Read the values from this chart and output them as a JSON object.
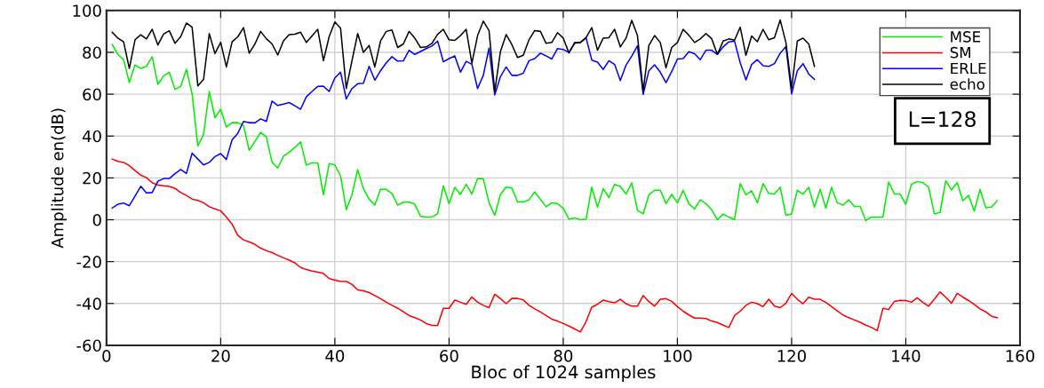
{
  "chart_data": {
    "type": "line",
    "xlabel": "Bloc of 1024 samples",
    "ylabel": "Amplitude en(dB)",
    "xlim": [
      0,
      160
    ],
    "xticks": [
      0,
      20,
      40,
      60,
      80,
      100,
      120,
      140,
      160
    ],
    "ylim": [
      -60,
      100
    ],
    "yticks": [
      -60,
      -40,
      -20,
      0,
      20,
      40,
      60,
      80,
      100
    ],
    "grid": true,
    "legend": "top right",
    "line_style": "solid",
    "marker": "none",
    "annotations": [
      "L=128"
    ],
    "series": [
      {
        "name": "MSE",
        "color": "#00ee00",
        "x": [
          1,
          2,
          3,
          4,
          5,
          6,
          7,
          8,
          9,
          10,
          11,
          12,
          13,
          14,
          15,
          16,
          17,
          18,
          19,
          20,
          21,
          22,
          23,
          24,
          25,
          26,
          27,
          28,
          29,
          30,
          31,
          32,
          33,
          34,
          35,
          36,
          37,
          38,
          39,
          40,
          41,
          42,
          43,
          44,
          45,
          46,
          47,
          48,
          49,
          50,
          51,
          52,
          53,
          54,
          55,
          56,
          57,
          58,
          59,
          60,
          61,
          62,
          63,
          64,
          65,
          66,
          67,
          68,
          69,
          70,
          71,
          72,
          73,
          74,
          75,
          76,
          77,
          78,
          79,
          80,
          81,
          82,
          83,
          84,
          85,
          86,
          87,
          88,
          89,
          90,
          91,
          92,
          93,
          94,
          95,
          96,
          97,
          98,
          99,
          100,
          101,
          102,
          103,
          104,
          105,
          106,
          107,
          108,
          109,
          110,
          111,
          112,
          113,
          114,
          115,
          116,
          117,
          118,
          119,
          120,
          121,
          122,
          123,
          124,
          125,
          126,
          127,
          128,
          129,
          130,
          131,
          132,
          133,
          134,
          135,
          136,
          137,
          138,
          139,
          140,
          141,
          142,
          143,
          144,
          145,
          146,
          147,
          148,
          149,
          150,
          151,
          152,
          153,
          154,
          155,
          156
        ],
        "values": [
          83.7,
          79,
          76.5,
          65.5,
          74,
          72.3,
          73.3,
          77.9,
          64.7,
          68.7,
          70.5,
          62.3,
          63.7,
          71.9,
          60.1,
          35.3,
          40.7,
          61.3,
          48.8,
          52.8,
          44.3,
          46.4,
          46.4,
          45,
          33.2,
          37.4,
          41.7,
          39.6,
          27.5,
          24.7,
          30.4,
          32.3,
          34.6,
          37.2,
          26.1,
          27.2,
          27.2,
          11.9,
          26.8,
          26.2,
          20.9,
          4.8,
          11.9,
          24,
          14.8,
          9.8,
          7,
          14.5,
          14.5,
          12.6,
          7,
          8.4,
          8.5,
          7.4,
          1.7,
          1.3,
          1.3,
          2.8,
          16.2,
          7.7,
          15.5,
          12.1,
          16.9,
          12.3,
          19.7,
          19.6,
          8.1,
          2.1,
          12.1,
          15.6,
          15.2,
          8.5,
          8.5,
          9.5,
          13.3,
          9.8,
          6.2,
          8.1,
          7.7,
          5.5,
          0.3,
          0.9,
          0,
          0.3,
          15.6,
          6,
          14.9,
          10.6,
          16.9,
          15.9,
          12.3,
          17.6,
          4.5,
          2.8,
          11.9,
          14.1,
          14.1,
          7.7,
          12.1,
          8.1,
          14.1,
          7.7,
          5.2,
          9.5,
          7.7,
          4.8,
          0,
          2.7,
          1.3,
          0,
          17.3,
          11.9,
          13.8,
          8.1,
          17.3,
          12.6,
          12.3,
          15.6,
          2.1,
          2.8,
          14.1,
          12.3,
          15.5,
          6,
          14.5,
          5.5,
          15.5,
          8.1,
          7,
          9.5,
          6.4,
          6.4,
          -0.4,
          1.3,
          1.3,
          1.3,
          18,
          12.3,
          12.3,
          7.4,
          17,
          18.3,
          17.7,
          15.6,
          2.8,
          3.5,
          18.7,
          14.2,
          17.7,
          9.1,
          11.6,
          4.1,
          14.5,
          5.7,
          6,
          9.1
        ]
      },
      {
        "name": "SM",
        "color": "#ff0000",
        "x": [
          1,
          2,
          3,
          4,
          5,
          6,
          7,
          8,
          9,
          10,
          11,
          12,
          13,
          14,
          15,
          16,
          17,
          18,
          19,
          20,
          21,
          22,
          23,
          24,
          25,
          26,
          27,
          28,
          29,
          30,
          31,
          32,
          33,
          34,
          35,
          36,
          37,
          38,
          39,
          40,
          41,
          42,
          43,
          44,
          45,
          46,
          47,
          48,
          49,
          50,
          51,
          52,
          53,
          54,
          55,
          56,
          57,
          58,
          59,
          60,
          61,
          62,
          63,
          64,
          65,
          66,
          67,
          68,
          69,
          70,
          71,
          72,
          73,
          74,
          75,
          76,
          77,
          78,
          79,
          80,
          81,
          82,
          83,
          84,
          85,
          86,
          87,
          88,
          89,
          90,
          91,
          92,
          93,
          94,
          95,
          96,
          97,
          98,
          99,
          100,
          101,
          102,
          103,
          104,
          105,
          106,
          107,
          108,
          109,
          110,
          111,
          112,
          113,
          114,
          115,
          116,
          117,
          118,
          119,
          120,
          121,
          122,
          123,
          124,
          125,
          126,
          127,
          128,
          129,
          130,
          131,
          132,
          133,
          134,
          135,
          136,
          137,
          138,
          139,
          140,
          141,
          142,
          143,
          144,
          145,
          146,
          147,
          148,
          149,
          150,
          151,
          152,
          153,
          154,
          155,
          156
        ],
        "values": [
          29,
          27.9,
          27.4,
          25.8,
          23.5,
          21.3,
          20.1,
          17.7,
          16.6,
          16.2,
          15.9,
          15,
          13,
          11.6,
          9.9,
          9.2,
          8.1,
          6.2,
          5.2,
          4.3,
          1.3,
          -2.1,
          -7.5,
          -9.6,
          -10.6,
          -11.8,
          -13.6,
          -14.8,
          -15.7,
          -17,
          -18.2,
          -19.3,
          -20.6,
          -22.8,
          -23.8,
          -24.5,
          -25,
          -25.7,
          -28.1,
          -28.8,
          -29.5,
          -29.5,
          -30.9,
          -33.5,
          -33.9,
          -34.8,
          -36.2,
          -37.7,
          -39.4,
          -40.9,
          -42.3,
          -44,
          -45.8,
          -46.8,
          -47.9,
          -49.6,
          -50.5,
          -50.5,
          -42.3,
          -42.3,
          -38.4,
          -39.4,
          -40.4,
          -36.9,
          -39.4,
          -40.9,
          -42,
          -35.6,
          -37.7,
          -40.1,
          -37.6,
          -37.6,
          -38.3,
          -40.9,
          -42.6,
          -44.1,
          -45.8,
          -47.5,
          -48.4,
          -49.6,
          -50.8,
          -52.2,
          -53.6,
          -48.7,
          -41.8,
          -40.4,
          -38.4,
          -39.1,
          -39.7,
          -38,
          -40.1,
          -41.3,
          -41.3,
          -36.2,
          -39.1,
          -41.3,
          -38,
          -37.7,
          -39,
          -41.5,
          -43.7,
          -45.5,
          -47,
          -47,
          -47.2,
          -48.4,
          -49.1,
          -50.4,
          -51.5,
          -45.8,
          -43.7,
          -40.9,
          -39.4,
          -40.1,
          -41.5,
          -38,
          -41.3,
          -42,
          -39.9,
          -35.2,
          -38,
          -40.1,
          -37,
          -38,
          -38,
          -39.5,
          -41.5,
          -43.5,
          -45.5,
          -46.8,
          -47.9,
          -49,
          -50.4,
          -51.5,
          -53,
          -42.3,
          -42.9,
          -39,
          -38.5,
          -38.6,
          -39.4,
          -37.3,
          -39.5,
          -41.3,
          -38,
          -34.5,
          -37,
          -39.9,
          -35.2,
          -37,
          -38.6,
          -40.5,
          -42.6,
          -44,
          -46.1,
          -46.8
        ]
      },
      {
        "name": "ERLE",
        "color": "#0000ff",
        "x": [
          1,
          2,
          3,
          4,
          5,
          6,
          7,
          8,
          9,
          10,
          11,
          12,
          13,
          14,
          15,
          16,
          17,
          18,
          19,
          20,
          21,
          22,
          23,
          24,
          25,
          26,
          27,
          28,
          29,
          30,
          31,
          32,
          33,
          34,
          35,
          36,
          37,
          38,
          39,
          40,
          41,
          42,
          43,
          44,
          45,
          46,
          47,
          48,
          49,
          50,
          51,
          52,
          53,
          54,
          55,
          56,
          57,
          58,
          59,
          60,
          61,
          62,
          63,
          64,
          65,
          66,
          67,
          68,
          69,
          70,
          71,
          72,
          73,
          74,
          75,
          76,
          77,
          78,
          79,
          80,
          81,
          82,
          83,
          84,
          85,
          86,
          87,
          88,
          89,
          90,
          91,
          92,
          93,
          94,
          95,
          96,
          97,
          98,
          99,
          100,
          101,
          102,
          103,
          104,
          105,
          106,
          107,
          108,
          109,
          110,
          111,
          112,
          113,
          114,
          115,
          116,
          117,
          118,
          119,
          120,
          121,
          122,
          123,
          124
        ],
        "values": [
          5.6,
          7.4,
          8,
          6.7,
          11.3,
          16,
          12.8,
          13,
          18.4,
          19.7,
          19.7,
          22,
          24,
          22.1,
          31.8,
          29,
          26.2,
          27.4,
          30.2,
          31.6,
          28.8,
          38.2,
          41.3,
          47,
          46.4,
          46.3,
          48.2,
          47,
          56.7,
          54.6,
          55.3,
          56,
          54.5,
          52.8,
          58.7,
          61.3,
          63.7,
          63.8,
          61.3,
          67.8,
          70.5,
          57.7,
          62.7,
          65,
          65.2,
          73.3,
          66.7,
          71.2,
          75,
          77.9,
          75.8,
          75.9,
          81,
          79,
          80.4,
          81.8,
          83,
          85.4,
          75.5,
          77,
          78.3,
          70.5,
          75.7,
          74.3,
          62.7,
          69,
          82,
          59.6,
          68.4,
          73,
          69,
          69,
          70,
          76,
          77,
          79.6,
          78.3,
          76.8,
          81.8,
          81.4,
          79.9,
          84.3,
          84.7,
          87,
          76.3,
          75.3,
          71.8,
          76,
          74.2,
          66.5,
          73.9,
          78.2,
          83.1,
          59.9,
          71.2,
          74,
          70.5,
          65.5,
          70.8,
          76.8,
          77,
          80.3,
          79.3,
          76.5,
          81,
          81,
          79,
          82.6,
          85,
          85.4,
          75,
          66.8,
          74.2,
          76.5,
          73.6,
          73.3,
          74.6,
          79.6,
          82.7,
          60.1,
          71.2,
          74.6,
          69.6,
          67.1
        ]
      },
      {
        "name": "echo",
        "color": "#000000",
        "x": [
          1,
          2,
          3,
          4,
          5,
          6,
          7,
          8,
          9,
          10,
          11,
          12,
          13,
          14,
          15,
          16,
          17,
          18,
          19,
          20,
          21,
          22,
          23,
          24,
          25,
          26,
          27,
          28,
          29,
          30,
          31,
          32,
          33,
          34,
          35,
          36,
          37,
          38,
          39,
          40,
          41,
          42,
          43,
          44,
          45,
          46,
          47,
          48,
          49,
          50,
          51,
          52,
          53,
          54,
          55,
          56,
          57,
          58,
          59,
          60,
          61,
          62,
          63,
          64,
          65,
          66,
          67,
          68,
          69,
          70,
          71,
          72,
          73,
          74,
          75,
          76,
          77,
          78,
          79,
          80,
          81,
          82,
          83,
          84,
          85,
          86,
          87,
          88,
          89,
          90,
          91,
          92,
          93,
          94,
          95,
          96,
          97,
          98,
          99,
          100,
          101,
          102,
          103,
          104,
          105,
          106,
          107,
          108,
          109,
          110,
          111,
          112,
          113,
          114,
          115,
          116,
          117,
          118,
          119,
          120,
          121,
          122,
          123,
          124
        ],
        "values": [
          89.6,
          86.8,
          85,
          72.3,
          86,
          88.4,
          86.4,
          91,
          83.5,
          88.7,
          90.3,
          84.3,
          87.5,
          94,
          92,
          64,
          67,
          89,
          79.4,
          84.8,
          73,
          85,
          87.4,
          91.8,
          79.6,
          84,
          90,
          86.5,
          84,
          78.7,
          85.5,
          88.5,
          88.7,
          89.6,
          84.7,
          87.8,
          91,
          76,
          87.5,
          94.5,
          91.5,
          62.7,
          76,
          89,
          80,
          83.3,
          73,
          85.4,
          90,
          90.7,
          82.3,
          84,
          90,
          86.8,
          82.3,
          82.6,
          84.3,
          88.6,
          91,
          86,
          85.7,
          88,
          91,
          74.8,
          88,
          94.9,
          90.4,
          61.3,
          80.4,
          88.5,
          83.7,
          77.5,
          78.6,
          86,
          90.4,
          90,
          84.3,
          84.7,
          89.4,
          86.8,
          79.7,
          84.7,
          84.7,
          87,
          91.8,
          81,
          86.8,
          87,
          91,
          82.6,
          86.8,
          95.3,
          88,
          61.3,
          83.3,
          88,
          84.7,
          72.6,
          82.3,
          84.7,
          91,
          88.2,
          84.7,
          86.4,
          89,
          86.5,
          79,
          85.4,
          86.4,
          85.8,
          92,
          78.6,
          87.8,
          85.1,
          91,
          86,
          87,
          95.5,
          84.7,
          62.7,
          85.4,
          86.8,
          84,
          73.3
        ]
      }
    ]
  }
}
